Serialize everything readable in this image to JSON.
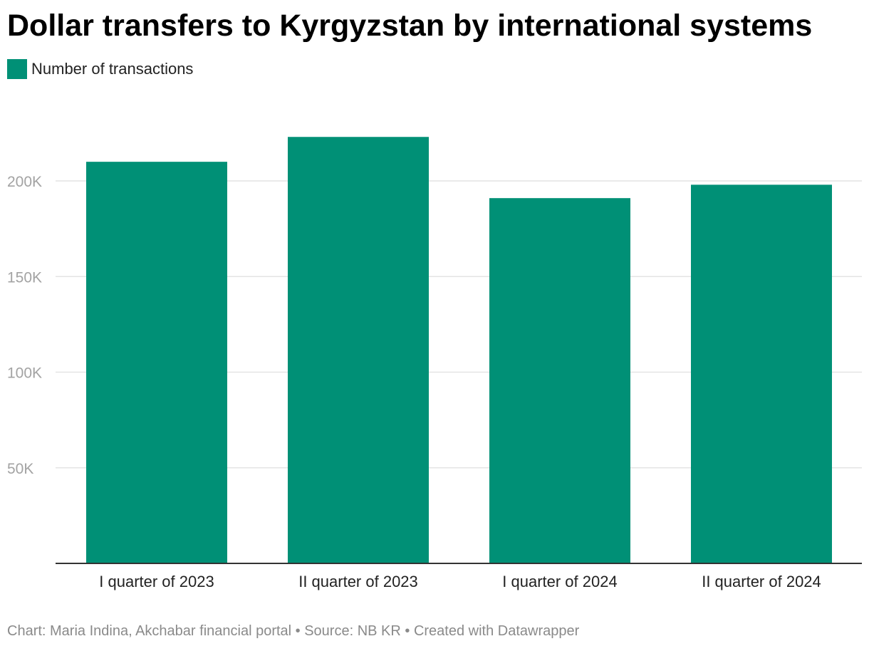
{
  "colors": {
    "bar": "#009076",
    "grid": "#e4e4e4",
    "axis": "#333333",
    "tick_text": "#a3a3a3",
    "category_text": "#222222",
    "footer_text": "#8a8a8a"
  },
  "footer": {
    "text": "Chart: Maria Indina, Akchabar financial portal • Source: NB KR • Created with Datawrapper"
  },
  "chart_data": {
    "type": "bar",
    "title": "Dollar transfers to Kyrgyzstan by international systems",
    "legend": "top-left",
    "grid": true,
    "categories": [
      "I quarter of 2023",
      "II quarter of 2023",
      "I quarter of 2024",
      "II quarter of 2024"
    ],
    "series": [
      {
        "name": "Number of transactions",
        "values": [
          210000,
          223000,
          191000,
          198000
        ]
      }
    ],
    "yticks": [
      50000,
      100000,
      150000,
      200000
    ],
    "ytick_labels": [
      "50K",
      "100K",
      "150K",
      "200K"
    ],
    "ylim": [
      0,
      230000
    ],
    "xlabel": "",
    "ylabel": ""
  }
}
